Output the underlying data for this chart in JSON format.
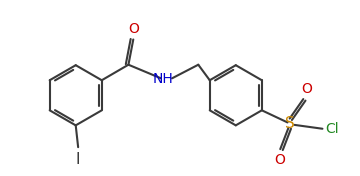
{
  "bg_color": "#ffffff",
  "line_color": "#3a3a3a",
  "line_width": 1.5,
  "figsize": [
    3.6,
    1.76
  ],
  "dpi": 100,
  "bond_color": "#3a3a3a",
  "atom_colors": {
    "O": "#cc0000",
    "N": "#0000cc",
    "S": "#cc8800",
    "Cl": "#228822",
    "I": "#333333",
    "C": "#3a3a3a"
  }
}
